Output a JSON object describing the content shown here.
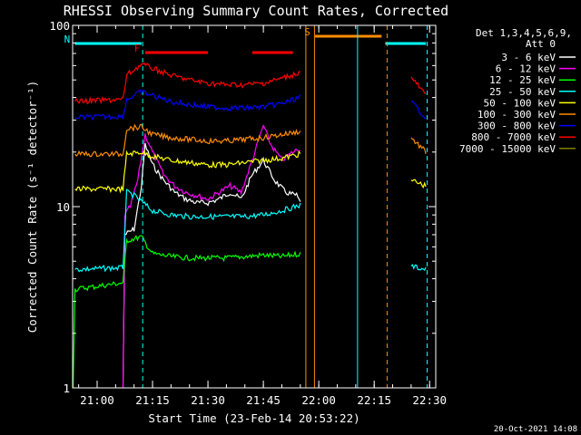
{
  "chart_data": {
    "type": "line",
    "title": "RHESSI Observing Summary Count Rates, Corrected",
    "xlabel": "Start Time (23-Feb-14 20:53:22)",
    "ylabel": "Corrected Count Rate (s⁻¹ detector⁻¹)",
    "y_scale": "log",
    "ylim": [
      1,
      100
    ],
    "xlim": [
      "20:53:22",
      "22:31:40"
    ],
    "x_tick_labels": [
      "21:00",
      "21:15",
      "21:30",
      "21:45",
      "22:00",
      "22:15",
      "22:30"
    ],
    "y_tick_labels": [
      "1",
      "10",
      "100"
    ],
    "legend_header": [
      "Det 1,3,4,5,6,9,",
      "Att 0"
    ],
    "series": [
      {
        "name": "3 - 6 keV",
        "color": "#ffffff",
        "points": [
          [
            "21:07",
            1.0
          ],
          [
            "21:07:30",
            7.0
          ],
          [
            "21:10",
            7.5
          ],
          [
            "21:12",
            13
          ],
          [
            "21:13",
            22
          ],
          [
            "21:15",
            17
          ],
          [
            "21:18",
            14
          ],
          [
            "21:21",
            12
          ],
          [
            "21:24",
            11
          ],
          [
            "21:27",
            10.5
          ],
          [
            "21:30",
            10.5
          ],
          [
            "21:33",
            11
          ],
          [
            "21:36",
            12
          ],
          [
            "21:39",
            11
          ],
          [
            "21:42",
            15
          ],
          [
            "21:45",
            18
          ],
          [
            "21:48",
            14
          ],
          [
            "21:51",
            12
          ],
          [
            "21:54",
            11.5
          ],
          [
            "21:55",
            10.5
          ]
        ]
      },
      {
        "name": "6 - 12 keV",
        "color": "#ff00ff",
        "points": [
          [
            "21:07",
            1.0
          ],
          [
            "21:07:30",
            9
          ],
          [
            "21:09",
            10
          ],
          [
            "21:11",
            14
          ],
          [
            "21:13",
            25
          ],
          [
            "21:15",
            20
          ],
          [
            "21:18",
            15
          ],
          [
            "21:21",
            13
          ],
          [
            "21:24",
            12
          ],
          [
            "21:27",
            11.5
          ],
          [
            "21:30",
            11
          ],
          [
            "21:33",
            12
          ],
          [
            "21:36",
            13
          ],
          [
            "21:39",
            12
          ],
          [
            "21:42",
            18
          ],
          [
            "21:45",
            28
          ],
          [
            "21:47",
            22
          ],
          [
            "21:50",
            18
          ],
          [
            "21:53",
            20
          ],
          [
            "21:55",
            21
          ]
        ]
      },
      {
        "name": "12 - 25 keV",
        "color": "#00ff00",
        "points": [
          [
            "20:53:30",
            1.0
          ],
          [
            "20:54",
            3.5
          ],
          [
            "21:07",
            3.8
          ],
          [
            "21:08",
            6.5
          ],
          [
            "21:12",
            6.8
          ],
          [
            "21:15",
            5.5
          ],
          [
            "21:20",
            5.3
          ],
          [
            "21:25",
            5.2
          ],
          [
            "21:30",
            5.2
          ],
          [
            "21:35",
            5.2
          ],
          [
            "21:40",
            5.3
          ],
          [
            "21:45",
            5.4
          ],
          [
            "21:50",
            5.3
          ],
          [
            "21:55",
            5.5
          ]
        ]
      },
      {
        "name": "25 - 50 keV",
        "color": "#00ffff",
        "points": [
          [
            "20:54",
            4.5
          ],
          [
            "21:07",
            4.6
          ],
          [
            "21:08",
            12
          ],
          [
            "21:10",
            11.5
          ],
          [
            "21:15",
            9.5
          ],
          [
            "21:20",
            9.0
          ],
          [
            "21:25",
            8.8
          ],
          [
            "21:30",
            8.8
          ],
          [
            "21:35",
            8.8
          ],
          [
            "21:40",
            8.8
          ],
          [
            "21:45",
            9.0
          ],
          [
            "21:50",
            9.5
          ],
          [
            "21:55",
            10.2
          ],
          [
            "22:25",
            4.7
          ],
          [
            "22:29",
            4.5
          ]
        ]
      },
      {
        "name": "50 - 100 keV",
        "color": "#ffff00",
        "points": [
          [
            "20:54",
            12.5
          ],
          [
            "21:07",
            12.5
          ],
          [
            "21:08",
            19.5
          ],
          [
            "21:12",
            20
          ],
          [
            "21:15",
            19
          ],
          [
            "21:20",
            18
          ],
          [
            "21:25",
            17.5
          ],
          [
            "21:30",
            17
          ],
          [
            "21:35",
            17
          ],
          [
            "21:40",
            17.5
          ],
          [
            "21:45",
            18
          ],
          [
            "21:50",
            18.5
          ],
          [
            "21:55",
            19.5
          ],
          [
            "22:25",
            14
          ],
          [
            "22:29",
            13
          ]
        ]
      },
      {
        "name": "100 - 300 keV",
        "color": "#ff8c00",
        "points": [
          [
            "20:54",
            19.5
          ],
          [
            "21:07",
            19.5
          ],
          [
            "21:08",
            27
          ],
          [
            "21:12",
            27.5
          ],
          [
            "21:15",
            25
          ],
          [
            "21:20",
            24
          ],
          [
            "21:25",
            23.5
          ],
          [
            "21:30",
            23
          ],
          [
            "21:35",
            23
          ],
          [
            "21:40",
            23.5
          ],
          [
            "21:45",
            24
          ],
          [
            "21:50",
            25
          ],
          [
            "21:55",
            26
          ],
          [
            "22:25",
            24
          ],
          [
            "22:29",
            20
          ]
        ]
      },
      {
        "name": "300 - 800 keV",
        "color": "#0000ff",
        "points": [
          [
            "20:54",
            31
          ],
          [
            "21:07",
            31.5
          ],
          [
            "21:08",
            39
          ],
          [
            "21:12",
            43
          ],
          [
            "21:15",
            41
          ],
          [
            "21:20",
            38
          ],
          [
            "21:25",
            36.5
          ],
          [
            "21:30",
            35.5
          ],
          [
            "21:35",
            35
          ],
          [
            "21:40",
            35
          ],
          [
            "21:45",
            35.5
          ],
          [
            "21:50",
            37
          ],
          [
            "21:55",
            40
          ],
          [
            "22:25",
            38
          ],
          [
            "22:29",
            31
          ]
        ]
      },
      {
        "name": "800 - 7000 keV",
        "color": "#ff0000",
        "points": [
          [
            "20:54",
            38
          ],
          [
            "21:07",
            39
          ],
          [
            "21:08",
            53
          ],
          [
            "21:12",
            61
          ],
          [
            "21:15",
            58
          ],
          [
            "21:20",
            53
          ],
          [
            "21:25",
            50
          ],
          [
            "21:30",
            48
          ],
          [
            "21:35",
            47
          ],
          [
            "21:40",
            47
          ],
          [
            "21:45",
            48
          ],
          [
            "21:50",
            51
          ],
          [
            "21:55",
            55
          ],
          [
            "22:25",
            52
          ],
          [
            "22:29",
            41
          ]
        ]
      },
      {
        "name": "7000 - 15000 keV",
        "color": "#808000",
        "points": []
      }
    ],
    "bars": [
      {
        "label": "N",
        "color": "#00ffff",
        "segments": [
          [
            "20:54",
            "21:12"
          ],
          [
            "22:18",
            "22:29"
          ]
        ]
      },
      {
        "label": "F",
        "color": "#ff0000",
        "segments": [
          [
            "21:13",
            "21:30"
          ],
          [
            "21:42",
            "21:53"
          ]
        ]
      },
      {
        "label": "S",
        "color": "#ff8c00",
        "segments": [
          [
            "21:59",
            "22:17"
          ]
        ]
      }
    ],
    "vlines": [
      {
        "time": "21:12:20",
        "color": "#00ffff",
        "style": "dashed"
      },
      {
        "time": "21:56:30",
        "color": "#ff8c00",
        "style": "solid"
      },
      {
        "time": "21:58:50",
        "color": "#ff8c00",
        "style": "solid"
      },
      {
        "time": "22:10:30",
        "color": "#00ffff",
        "style": "solid"
      },
      {
        "time": "22:18:30",
        "color": "#ff8c00",
        "style": "dashed"
      },
      {
        "time": "22:29:20",
        "color": "#00ffff",
        "style": "dashed"
      }
    ],
    "footer_date": "20-Oct-2021 14:08"
  }
}
